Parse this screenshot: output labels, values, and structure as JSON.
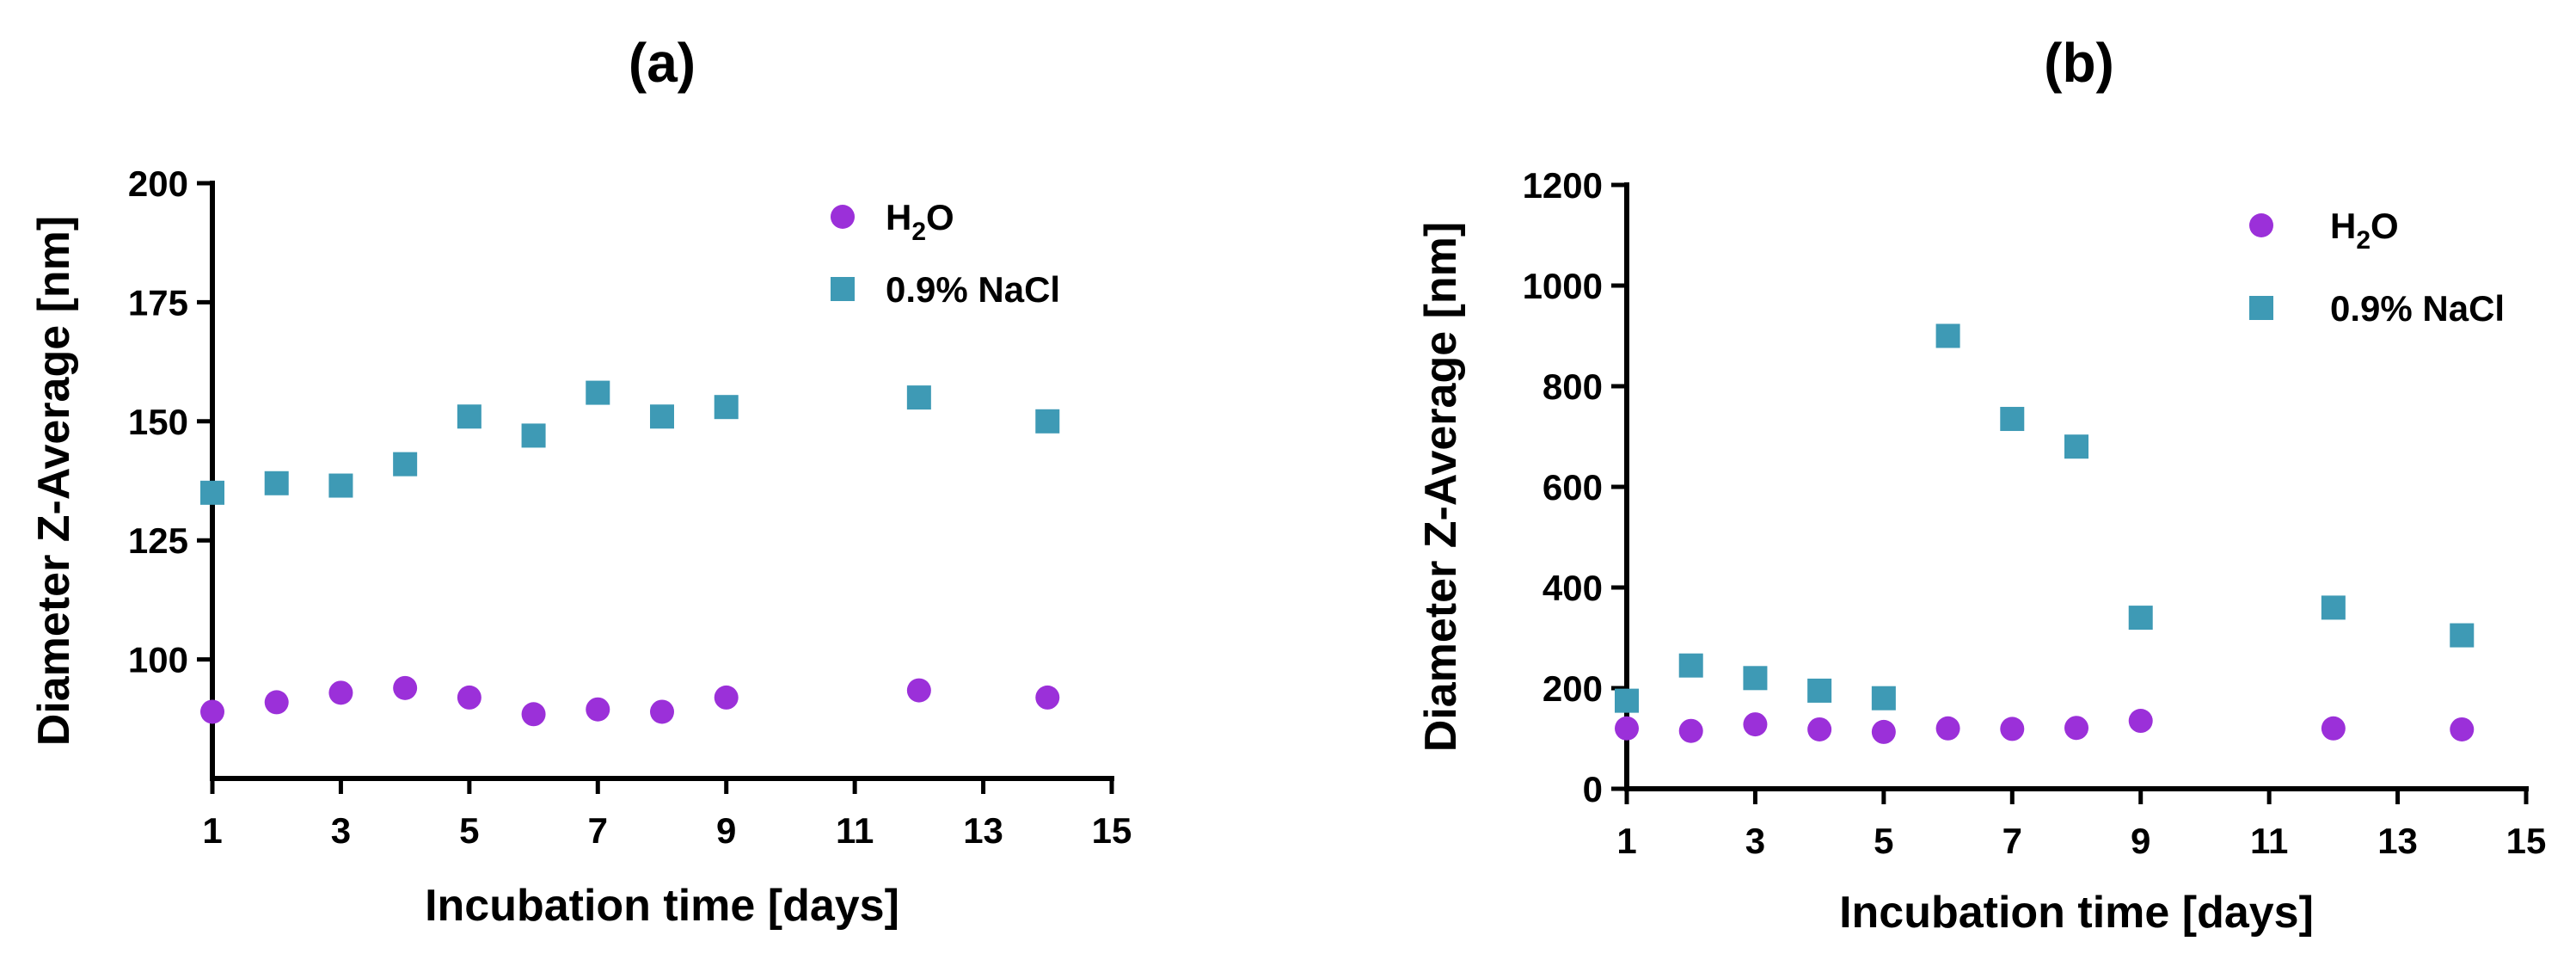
{
  "chart_data": [
    {
      "id": "a",
      "type": "scatter",
      "title": "(a)",
      "xlabel": "Incubation time [days]",
      "ylabel": "Diameter Z-Average [nm]",
      "xlim": [
        1,
        15
      ],
      "ylim": [
        75,
        200
      ],
      "xticks": [
        1,
        3,
        5,
        7,
        9,
        11,
        13,
        15
      ],
      "yticks": [
        100,
        125,
        150,
        175,
        200
      ],
      "legend_position": "top-right",
      "grid": false,
      "series": [
        {
          "name": "H₂O",
          "name_base": "H",
          "name_sub": "2",
          "name_tail": "O",
          "marker": "circle",
          "color": "#9B30D9",
          "x": [
            1,
            2,
            3,
            4,
            5,
            6,
            7,
            8,
            9,
            12,
            14
          ],
          "y": [
            89,
            91,
            93,
            94,
            92,
            88.5,
            89.5,
            89,
            92,
            93.5,
            92
          ]
        },
        {
          "name": "0.9% NaCl",
          "marker": "square",
          "color": "#3E9AB5",
          "x": [
            1,
            2,
            3,
            4,
            5,
            6,
            7,
            8,
            9,
            12,
            14
          ],
          "y": [
            135,
            137,
            136.5,
            141,
            151,
            147,
            156,
            151,
            153,
            155,
            150
          ]
        }
      ]
    },
    {
      "id": "b",
      "type": "scatter",
      "title": "(b)",
      "xlabel": "Incubation time [days]",
      "ylabel": "Diameter Z-Average [nm]",
      "xlim": [
        1,
        15
      ],
      "ylim": [
        0,
        1200
      ],
      "xticks": [
        1,
        3,
        5,
        7,
        9,
        11,
        13,
        15
      ],
      "yticks": [
        0,
        200,
        400,
        600,
        800,
        1000,
        1200
      ],
      "legend_position": "top-right",
      "grid": false,
      "series": [
        {
          "name": "H₂O",
          "name_base": "H",
          "name_sub": "2",
          "name_tail": "O",
          "marker": "circle",
          "color": "#9B30D9",
          "x": [
            1,
            2,
            3,
            4,
            5,
            6,
            7,
            8,
            9,
            12,
            14
          ],
          "y": [
            120,
            115,
            128,
            118,
            113,
            120,
            119,
            121,
            135,
            120,
            118
          ]
        },
        {
          "name": "0.9% NaCl",
          "marker": "square",
          "color": "#3E9AB5",
          "x": [
            1,
            2,
            3,
            4,
            5,
            6,
            7,
            8,
            9,
            12,
            14
          ],
          "y": [
            175,
            245,
            220,
            195,
            180,
            900,
            735,
            680,
            340,
            360,
            305
          ]
        }
      ]
    }
  ]
}
